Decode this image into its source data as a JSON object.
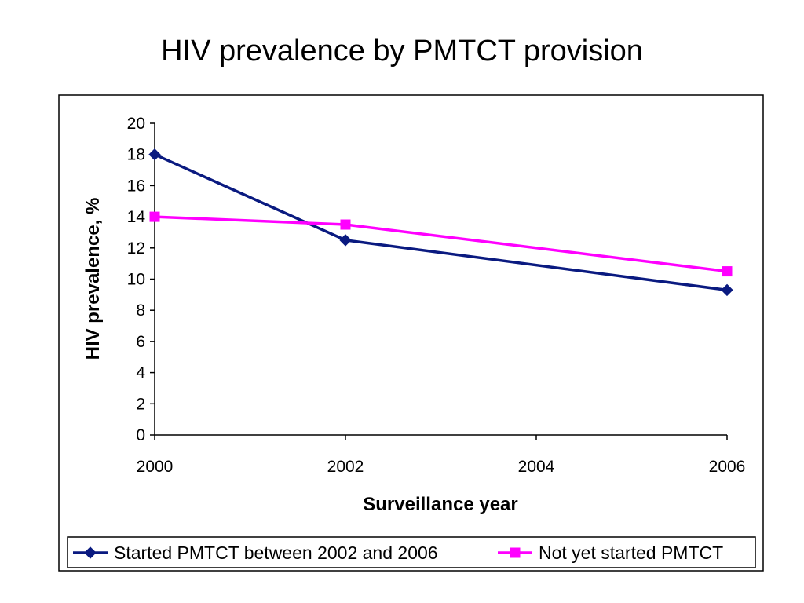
{
  "chart_data": {
    "type": "line",
    "title": "HIV prevalence by PMTCT provision",
    "xlabel": "Surveillance year",
    "ylabel": "HIV prevalence, %",
    "xlim": [
      2000,
      2006
    ],
    "ylim": [
      0,
      20
    ],
    "x_ticks": [
      2000,
      2002,
      2004,
      2006
    ],
    "y_ticks": [
      0,
      2,
      4,
      6,
      8,
      10,
      12,
      14,
      16,
      18,
      20
    ],
    "grid": false,
    "legend_position": "bottom",
    "series": [
      {
        "name": "Started PMTCT between 2002 and 2006",
        "color": "#0A1A80",
        "marker": "diamond",
        "x": [
          2000,
          2002,
          2006
        ],
        "y": [
          18.0,
          12.5,
          9.3
        ]
      },
      {
        "name": "Not yet started PMTCT",
        "color": "#FF00FF",
        "marker": "square",
        "x": [
          2000,
          2002,
          2006
        ],
        "y": [
          14.0,
          13.5,
          10.5
        ]
      }
    ]
  }
}
